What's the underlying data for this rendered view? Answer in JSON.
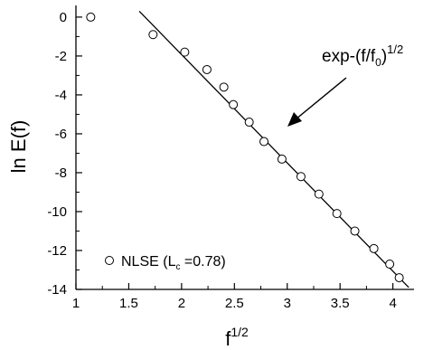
{
  "chart_data": {
    "type": "scatter",
    "xlabel_base": "f",
    "xlabel_sup": "1/2",
    "ylabel": "ln E(f)",
    "xlim": [
      1,
      4.2
    ],
    "ylim": [
      -14,
      0.6
    ],
    "xticks": [
      1,
      1.5,
      2,
      2.5,
      3,
      3.5,
      4
    ],
    "xtick_labels": [
      "1",
      "1.5",
      "2",
      "2.5",
      "3",
      "3.5",
      "4"
    ],
    "yticks": [
      0,
      -2,
      -4,
      -6,
      -8,
      -10,
      -12,
      -14
    ],
    "ytick_labels": [
      "0",
      "-2",
      "-4",
      "-6",
      "-8",
      "-10",
      "-12",
      "-14"
    ],
    "series": [
      {
        "name": "NLSE (L_c =0.78)",
        "marker": "open-circle",
        "x": [
          1.14,
          1.73,
          2.03,
          2.24,
          2.4,
          2.49,
          2.64,
          2.78,
          2.95,
          3.13,
          3.3,
          3.47,
          3.64,
          3.82,
          3.97,
          4.06
        ],
        "y": [
          0.0,
          -0.9,
          -1.8,
          -2.7,
          -3.6,
          -4.5,
          -5.4,
          -6.4,
          -7.3,
          -8.2,
          -9.1,
          -10.1,
          -11.0,
          -11.9,
          -12.7,
          -13.4
        ]
      }
    ],
    "fit_line": {
      "label_base": "exp-(f/f",
      "label_sub": "0",
      "label_close": ")",
      "label_sup": "1/2",
      "x": [
        1.6,
        4.15
      ],
      "y": [
        0.3,
        -13.9
      ]
    },
    "legend": {
      "position": "bottom-left",
      "text_base": "NLSE (L",
      "text_sub": "c",
      "text_rest": " =0.78)"
    }
  }
}
